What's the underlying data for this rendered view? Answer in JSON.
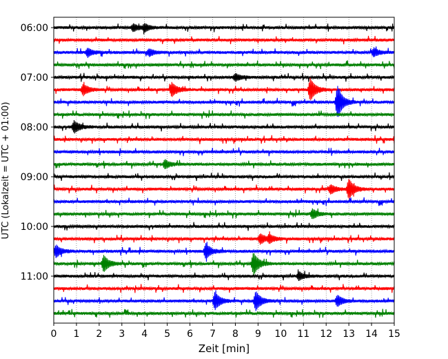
{
  "chart_data": {
    "type": "line",
    "chart_kind": "helicorder seismogram",
    "xlabel": "Zeit  [min]",
    "ylabel": "UTC (Lokalzeit = UTC + 01:00)",
    "xlim": [
      0,
      15
    ],
    "x_ticks": [
      0,
      1,
      2,
      3,
      4,
      5,
      6,
      7,
      8,
      9,
      10,
      11,
      12,
      13,
      14,
      15
    ],
    "x_tick_labels": [
      "0",
      "1",
      "2",
      "3",
      "4",
      "5",
      "6",
      "7",
      "8",
      "9",
      "10",
      "11",
      "12",
      "13",
      "14",
      "15"
    ],
    "y_tick_labels": [
      "06:00",
      "07:00",
      "08:00",
      "09:00",
      "10:00",
      "11:00"
    ],
    "traces_per_hour": 4,
    "trace_count": 24,
    "grid": "vertical dotted lines at each minute",
    "colors": [
      "#000000",
      "#ff0000",
      "#0000ff",
      "#008000"
    ],
    "events": [
      {
        "trace": 5,
        "x": 1.3,
        "amp": 0.55
      },
      {
        "trace": 5,
        "x": 5.2,
        "amp": 0.7
      },
      {
        "trace": 5,
        "x": 11.3,
        "amp": 1.1
      },
      {
        "trace": 6,
        "x": 12.5,
        "amp": 1.6
      },
      {
        "trace": 8,
        "x": 0.9,
        "amp": 0.6
      },
      {
        "trace": 13,
        "x": 13.0,
        "amp": 1.0
      },
      {
        "trace": 13,
        "x": 12.2,
        "amp": 0.45
      },
      {
        "trace": 17,
        "x": 9.1,
        "amp": 0.5
      },
      {
        "trace": 17,
        "x": 9.5,
        "amp": 0.35
      },
      {
        "trace": 18,
        "x": 0.1,
        "amp": 0.6
      },
      {
        "trace": 18,
        "x": 6.7,
        "amp": 0.75
      },
      {
        "trace": 19,
        "x": 2.2,
        "amp": 0.8
      },
      {
        "trace": 19,
        "x": 8.8,
        "amp": 1.1
      },
      {
        "trace": 20,
        "x": 10.8,
        "amp": 0.4
      },
      {
        "trace": 22,
        "x": 7.1,
        "amp": 0.85
      },
      {
        "trace": 22,
        "x": 8.9,
        "amp": 0.95
      },
      {
        "trace": 22,
        "x": 12.5,
        "amp": 0.55
      },
      {
        "trace": 15,
        "x": 11.4,
        "amp": 0.45
      },
      {
        "trace": 11,
        "x": 4.9,
        "amp": 0.4
      },
      {
        "trace": 4,
        "x": 8.0,
        "amp": 0.35
      },
      {
        "trace": 0,
        "x": 3.5,
        "amp": 0.35
      },
      {
        "trace": 0,
        "x": 4.0,
        "amp": 0.35
      },
      {
        "trace": 2,
        "x": 1.5,
        "amp": 0.4
      },
      {
        "trace": 2,
        "x": 4.2,
        "amp": 0.35
      },
      {
        "trace": 2,
        "x": 14.1,
        "amp": 0.4
      }
    ]
  }
}
